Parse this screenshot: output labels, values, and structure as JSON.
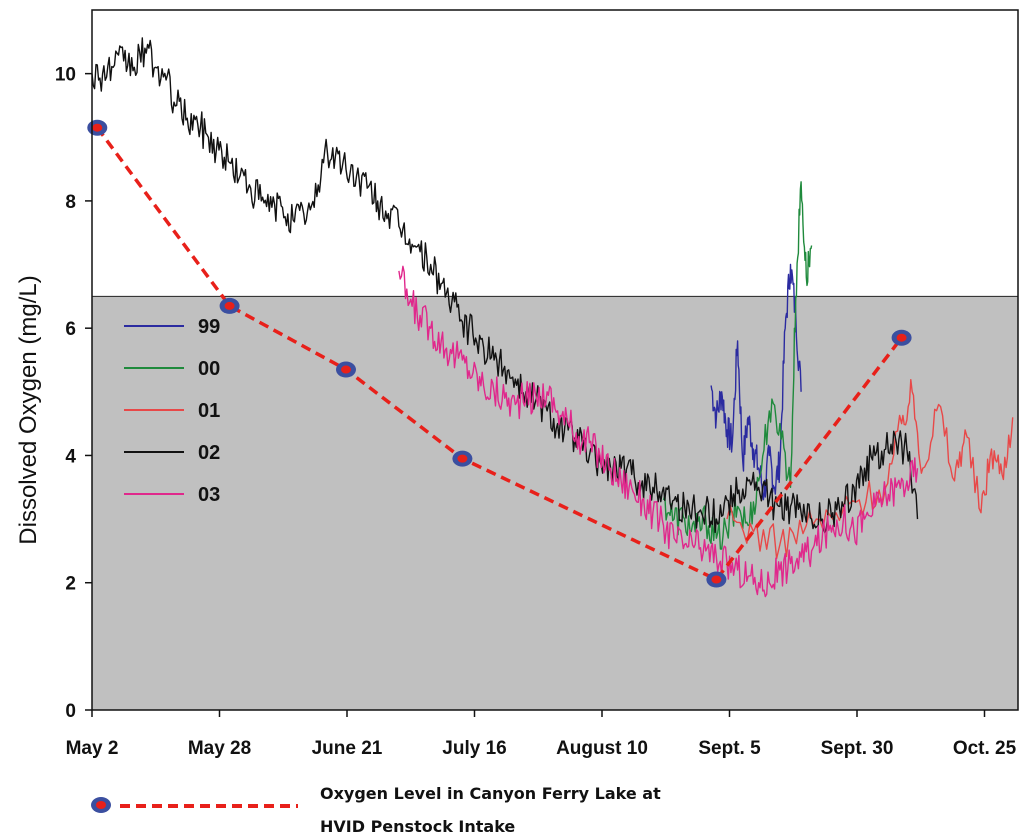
{
  "chart_data": {
    "type": "line",
    "ylabel": "Dissolved Oxygen (mg/L)",
    "xlabel": "",
    "x_tick_labels": [
      "May 2",
      "May 28",
      "June 21",
      "July 16",
      "August 10",
      "Sept. 5",
      "Sept. 30",
      "Oct. 25"
    ],
    "xlim": [
      0,
      175
    ],
    "ylim": [
      0,
      11
    ],
    "y_ticks": [
      0,
      2,
      4,
      6,
      8,
      10
    ],
    "threshold": 6.5,
    "threshold_fill": "#c0c0c0",
    "legend_placement": "left, inside plot",
    "series": [
      {
        "name": "99",
        "color": "#2b2ba0",
        "x": [
          117,
          118,
          119,
          120,
          121,
          122,
          123,
          124,
          125,
          126,
          127,
          128,
          129,
          130,
          131,
          132,
          133,
          134
        ],
        "y": [
          5.1,
          4.6,
          5.0,
          4.4,
          4.2,
          5.8,
          3.9,
          4.6,
          4.1,
          3.8,
          3.4,
          4.0,
          3.5,
          3.9,
          6.0,
          7.0,
          6.2,
          5.0
        ]
      },
      {
        "name": "00",
        "color": "#1f8a3c",
        "x": [
          108,
          110,
          112,
          114,
          116,
          118,
          120,
          122,
          124,
          126,
          128,
          130,
          132,
          133,
          134,
          135,
          136
        ],
        "y": [
          3.3,
          3.0,
          3.0,
          2.8,
          3.0,
          2.7,
          2.8,
          3.2,
          2.9,
          3.6,
          4.7,
          4.5,
          3.5,
          6.5,
          8.3,
          6.8,
          7.3
        ]
      },
      {
        "name": "01",
        "color": "#e84848",
        "x": [
          120,
          125,
          130,
          135,
          140,
          145,
          150,
          153,
          155,
          157,
          160,
          163,
          165,
          168,
          170,
          172,
          174
        ],
        "y": [
          3.0,
          2.8,
          2.6,
          2.9,
          3.0,
          3.3,
          3.5,
          4.5,
          5.0,
          3.8,
          4.8,
          3.6,
          4.4,
          3.1,
          4.1,
          3.7,
          4.6
        ]
      },
      {
        "name": "02",
        "color": "#111111",
        "x": [
          0,
          2,
          4,
          6,
          8,
          10,
          12,
          14,
          16,
          18,
          20,
          22,
          24,
          26,
          28,
          30,
          32,
          34,
          36,
          38,
          40,
          42,
          44,
          46,
          48,
          50,
          52,
          54,
          56,
          58,
          60,
          62,
          64,
          66,
          68,
          70,
          72,
          74,
          76,
          78,
          80,
          82,
          84,
          86,
          88,
          90,
          92,
          94,
          96,
          98,
          100,
          102,
          104,
          106,
          108,
          110,
          112,
          114,
          116,
          118,
          120,
          122,
          124,
          126,
          128,
          130,
          132,
          134,
          136,
          138,
          140,
          142,
          144,
          146,
          148,
          150,
          152,
          154,
          156
        ],
        "y": [
          10.0,
          10.0,
          10.1,
          10.2,
          10.1,
          10.4,
          10.1,
          9.9,
          9.5,
          9.3,
          9.2,
          9.0,
          8.8,
          8.6,
          8.4,
          8.2,
          8.0,
          7.9,
          7.9,
          7.7,
          7.8,
          7.9,
          8.8,
          8.7,
          8.5,
          8.4,
          8.2,
          8.0,
          7.8,
          7.6,
          7.4,
          7.2,
          7.0,
          6.7,
          6.4,
          6.1,
          5.9,
          5.7,
          5.5,
          5.4,
          5.2,
          5.0,
          4.9,
          4.7,
          4.5,
          4.4,
          4.2,
          4.0,
          3.9,
          3.8,
          3.8,
          3.7,
          3.6,
          3.5,
          3.5,
          3.3,
          3.2,
          3.1,
          3.2,
          3.0,
          3.3,
          3.4,
          3.6,
          3.5,
          3.3,
          3.2,
          3.2,
          3.1,
          3.0,
          3.0,
          3.1,
          3.2,
          3.5,
          3.8,
          4.0,
          4.1,
          4.2,
          4.1,
          3.0
        ]
      },
      {
        "name": "03",
        "color": "#e0288c",
        "x": [
          58,
          60,
          62,
          64,
          66,
          68,
          70,
          72,
          74,
          76,
          78,
          80,
          82,
          84,
          86,
          88,
          90,
          92,
          94,
          96,
          98,
          100,
          102,
          104,
          106,
          108,
          110,
          112,
          114,
          116,
          118,
          120,
          122,
          124,
          126,
          128,
          130,
          132,
          134,
          136,
          138,
          140,
          142,
          144,
          146,
          148,
          150,
          152,
          154,
          156
        ],
        "y": [
          6.9,
          6.4,
          6.2,
          6.0,
          5.8,
          5.6,
          5.5,
          5.3,
          5.1,
          5.0,
          4.9,
          4.8,
          4.9,
          4.9,
          5.0,
          4.7,
          4.5,
          4.3,
          4.2,
          4.0,
          3.8,
          3.6,
          3.5,
          3.3,
          3.1,
          2.9,
          2.7,
          2.6,
          2.6,
          2.5,
          2.4,
          2.3,
          2.2,
          2.1,
          2.0,
          2.0,
          2.2,
          2.3,
          2.4,
          2.5,
          2.7,
          2.9,
          3.0,
          2.8,
          3.0,
          3.2,
          3.4,
          3.5,
          3.6,
          3.8
        ]
      }
    ],
    "intake_series": {
      "color": "#e8201a",
      "marker_color": "#3b4fa0",
      "x": [
        1,
        26,
        48,
        70,
        118,
        153
      ],
      "y": [
        9.15,
        6.35,
        5.35,
        3.95,
        2.05,
        5.85
      ]
    },
    "caption_lines": [
      "Oxygen Level in Canyon Ferry Lake at",
      "HVID Penstock Intake"
    ]
  }
}
